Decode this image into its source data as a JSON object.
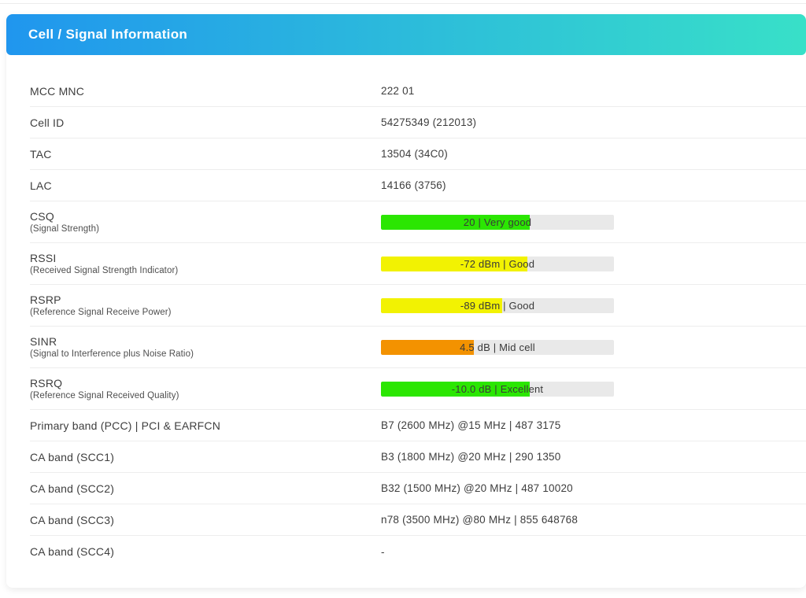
{
  "header": {
    "title": "Cell / Signal Information",
    "gradient_left": "#2096ee",
    "gradient_right": "#38e0c8"
  },
  "colors": {
    "track": "#e9e9e9",
    "good_green": "#2be602",
    "mid_yellow": "#f2f202",
    "low_orange": "#f39200"
  },
  "rows": [
    {
      "type": "text",
      "label": "MCC MNC",
      "value": "222 01"
    },
    {
      "type": "text",
      "label": "Cell ID",
      "value": "54275349 (212013)"
    },
    {
      "type": "text",
      "label": "TAC",
      "value": "13504 (34C0)"
    },
    {
      "type": "text",
      "label": "LAC",
      "value": "14166 (3756)"
    },
    {
      "type": "bar",
      "label": "CSQ",
      "sublabel": "(Signal Strength)",
      "value": "20 | Very good",
      "percent": 64,
      "color": "#2be602"
    },
    {
      "type": "bar",
      "label": "RSSI",
      "sublabel": "(Received Signal Strength Indicator)",
      "value": "-72 dBm | Good",
      "percent": 63,
      "color": "#f2f202"
    },
    {
      "type": "bar",
      "label": "RSRP",
      "sublabel": "(Reference Signal Receive Power)",
      "value": "-89 dBm | Good",
      "percent": 52,
      "color": "#f2f202"
    },
    {
      "type": "bar",
      "label": "SINR",
      "sublabel": "(Signal to Interference plus Noise Ratio)",
      "value": "4.5 dB | Mid cell",
      "percent": 40,
      "color": "#f39200"
    },
    {
      "type": "bar",
      "label": "RSRQ",
      "sublabel": "(Reference Signal Received Quality)",
      "value": "-10.0 dB | Excellent",
      "percent": 64,
      "color": "#2be602"
    },
    {
      "type": "text",
      "label": "Primary band (PCC) | PCI & EARFCN",
      "value": "B7 (2600 MHz) @15 MHz | 487 3175"
    },
    {
      "type": "text",
      "label": "CA band (SCC1)",
      "value": "B3 (1800 MHz) @20 MHz | 290 1350"
    },
    {
      "type": "text",
      "label": "CA band (SCC2)",
      "value": "B32 (1500 MHz) @20 MHz | 487 10020"
    },
    {
      "type": "text",
      "label": "CA band (SCC3)",
      "value": "n78 (3500 MHz) @80 MHz | 855 648768"
    },
    {
      "type": "text",
      "label": "CA band (SCC4)",
      "value": "-"
    }
  ]
}
